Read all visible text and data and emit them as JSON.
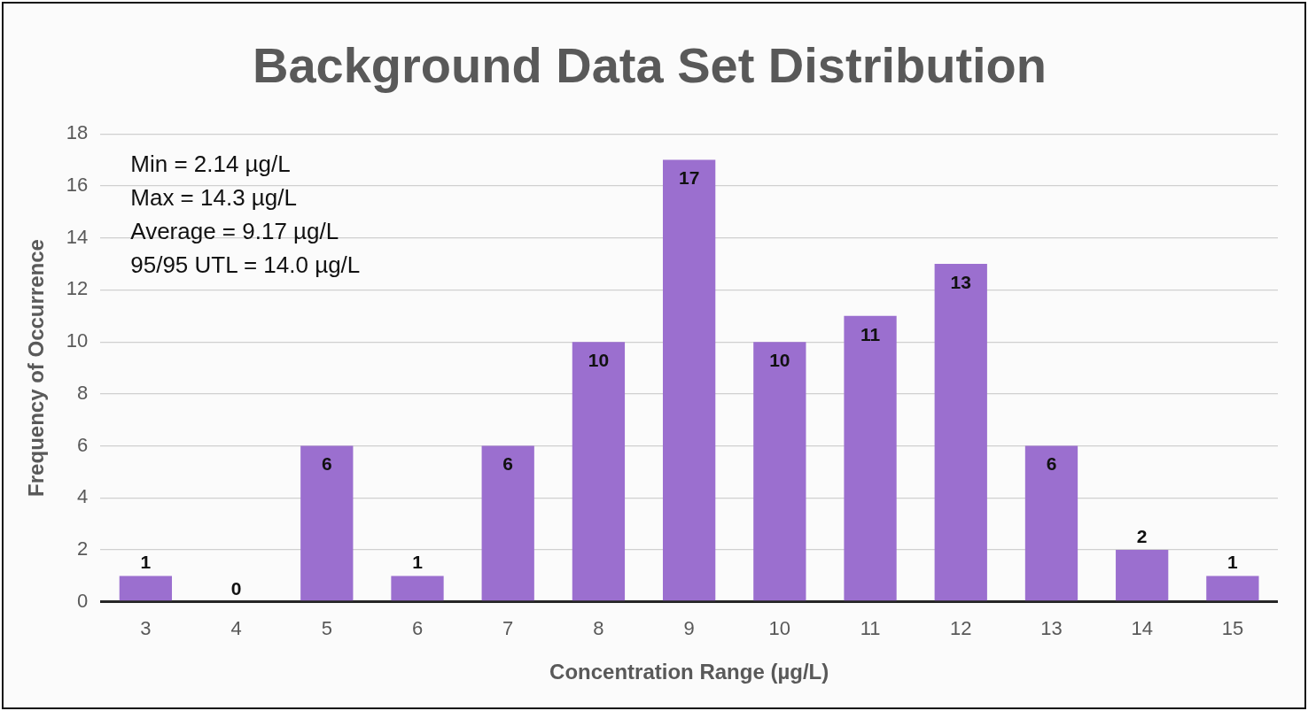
{
  "chart_data": {
    "type": "bar",
    "title": "Background Data Set Distribution",
    "xlabel": "Concentration Range (µg/L)",
    "ylabel": "Frequency of Occurrence",
    "categories": [
      "3",
      "4",
      "5",
      "6",
      "7",
      "8",
      "9",
      "10",
      "11",
      "12",
      "13",
      "14",
      "15"
    ],
    "values": [
      1,
      0,
      6,
      1,
      6,
      10,
      17,
      10,
      11,
      13,
      6,
      2,
      1
    ],
    "color": "#9b6fcf",
    "ylim": [
      0,
      18
    ],
    "yticks": [
      0,
      2,
      4,
      6,
      8,
      10,
      12,
      14,
      16,
      18
    ],
    "grid": "y",
    "data_labels": true,
    "annotations": [
      "Min = 2.14 µg/L",
      "Max = 14.3 µg/L",
      "Average = 9.17 µg/L",
      "95/95 UTL = 14.0 µg/L"
    ]
  }
}
